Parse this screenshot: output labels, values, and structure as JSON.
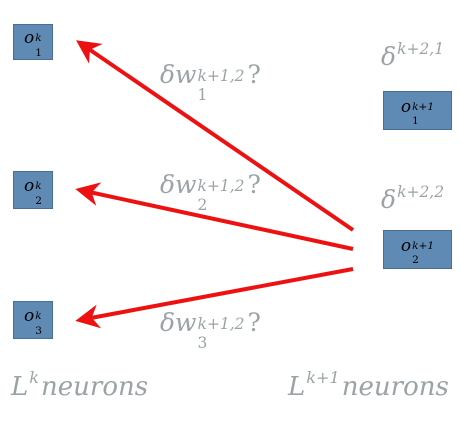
{
  "left_layer": {
    "label_base": "L",
    "label_sup": "k",
    "label_rest": "neurons",
    "neurons": [
      {
        "base": "o",
        "sup": "k",
        "sub": "1"
      },
      {
        "base": "o",
        "sup": "k",
        "sub": "2"
      },
      {
        "base": "o",
        "sup": "k",
        "sub": "3"
      }
    ]
  },
  "right_layer": {
    "label_base": "L",
    "label_sup": "k+1",
    "label_rest": "neurons",
    "neurons": [
      {
        "base": "o",
        "sup": "k+1",
        "sub": "1"
      },
      {
        "base": "o",
        "sup": "k+1",
        "sub": "2"
      }
    ],
    "deltas": [
      {
        "base": "δ",
        "sup": "k+2,1"
      },
      {
        "base": "δ",
        "sup": "k+2,2"
      }
    ]
  },
  "weights": [
    {
      "base": "δw",
      "sup": "k+1,2",
      "sub": "1",
      "suffix": "?"
    },
    {
      "base": "δw",
      "sup": "k+1,2",
      "sub": "2",
      "suffix": "?"
    },
    {
      "base": "δw",
      "sup": "k+1,2",
      "sub": "3",
      "suffix": "?"
    }
  ],
  "colors": {
    "neuron_fill": "#5f8ab3",
    "arrow": "#ee1111",
    "label": "#9aa3a6"
  }
}
